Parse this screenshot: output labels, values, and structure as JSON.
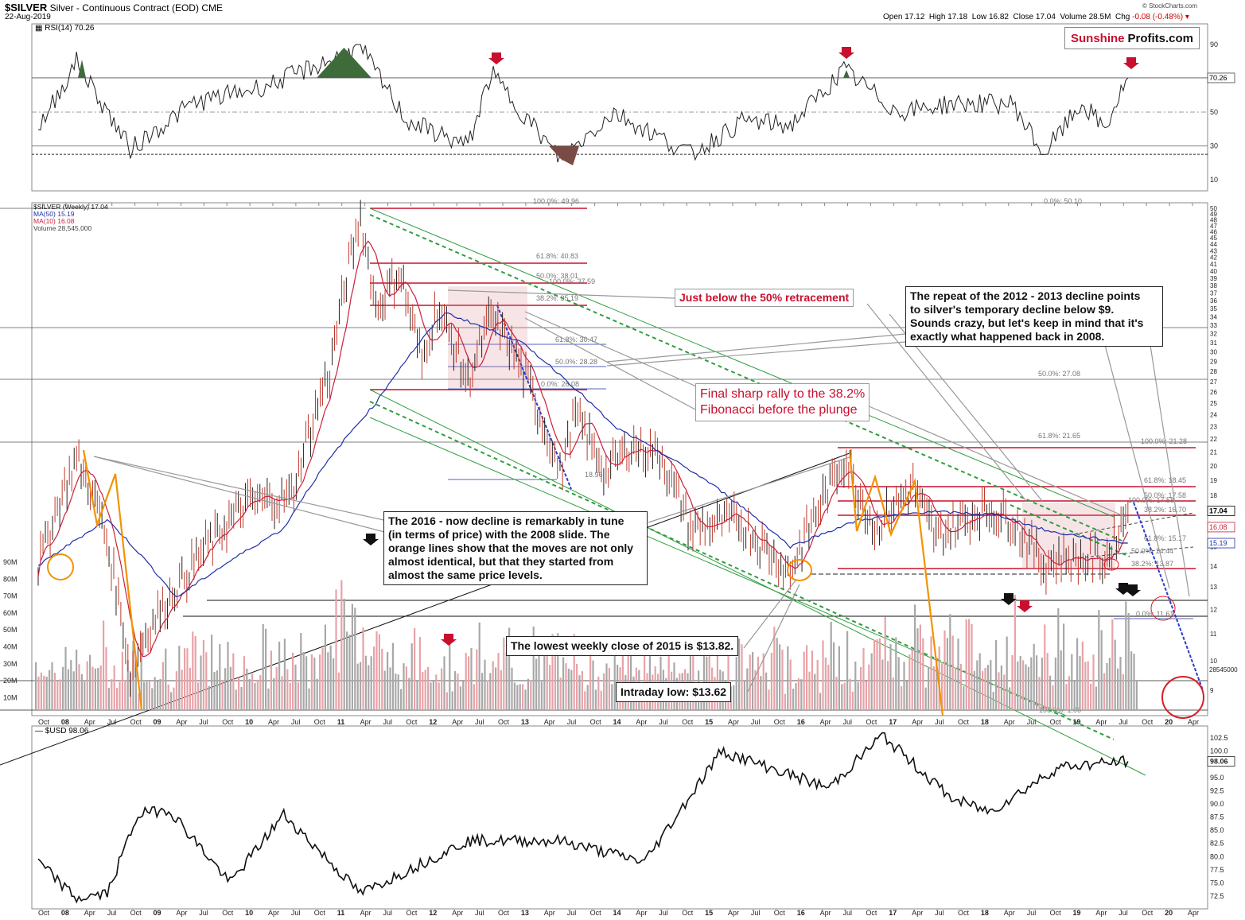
{
  "header": {
    "symbol": "$SILVER",
    "name": "Silver - Continuous Contract (EOD)",
    "exchange": "CME",
    "date": "22-Aug-2019",
    "open_label": "Open",
    "open": "17.12",
    "high_label": "High",
    "high": "17.18",
    "low_label": "Low",
    "low": "16.82",
    "close_label": "Close",
    "close": "17.04",
    "volume_label": "Volume",
    "volume": "28.5M",
    "chg_label": "Chg",
    "chg": "-0.08 (-0.48%)",
    "credit": "© StockCharts.com"
  },
  "brand": {
    "part1": "Sunshine",
    "part2": "Profits.com"
  },
  "colors": {
    "price": "#c0392b",
    "ma50": "#1f2fa8",
    "ma10": "#cc1f3a",
    "fib": "#c8102e",
    "channel": "#2e9e3e",
    "orange": "#f39200",
    "volume_up": "#e7a3a8",
    "volume_down": "#a8a8a8",
    "rsi_over": "#3f6b3a",
    "rsi_under": "#7a4b45"
  },
  "rsi_panel": {
    "label": "RSI(14) 70.26",
    "current": "70.26",
    "ticks": [
      "90",
      "70.26",
      "50",
      "30",
      "10"
    ]
  },
  "price_panel": {
    "legend": [
      "$SILVER (Weekly) 17.04",
      "MA(50) 15.19",
      "MA(10) 16.08",
      "Volume 28,545,000"
    ],
    "y_ticks": [
      "50",
      "49",
      "48",
      "47",
      "46",
      "45",
      "44",
      "43",
      "42",
      "41",
      "40",
      "39",
      "38",
      "37",
      "36",
      "35",
      "34",
      "33",
      "32",
      "31",
      "30",
      "29",
      "28",
      "27",
      "26",
      "25",
      "24",
      "23",
      "22",
      "21",
      "20",
      "19",
      "18",
      "17",
      "16",
      "15",
      "14",
      "13",
      "12",
      "11",
      "10",
      "9"
    ],
    "last_labels": {
      "price": "17.04",
      "ma10": "16.08",
      "ma50": "15.19",
      "volume": "28545000"
    },
    "volume_ticks": [
      "90M",
      "80M",
      "70M",
      "60M",
      "50M",
      "40M",
      "30M",
      "20M",
      "10M"
    ],
    "fib_labels_2011": [
      "100.0%: 49.96",
      "61.8%: 40.83",
      "50.0%: 38.01",
      "38.2%: 35.19",
      "0.0%: 50.10",
      "50.0%: 27.08",
      "61.8%: 21.65"
    ],
    "fib_labels_2012": [
      "100.0%: 37.59",
      "61.8%: 30.47",
      "50.0%: 28.28",
      "0.0%: 26.08",
      "18.96"
    ],
    "fib_labels_2016": [
      "100.0%: 21.28",
      "61.8%: 18.45",
      "50.0%: 17.58",
      "38.2%: 16.70",
      "61.8%: 15.17",
      "50.0%: 14.44",
      "38.2%: 13.87",
      "0.0%: 11.61"
    ],
    "fib_labels_small": [
      "100.0%: 17.58"
    ],
    "bottom_fib": "100.0%: 1.06"
  },
  "annotations": {
    "fifty_pct": "Just below the 50% retracement",
    "repeat": [
      "The repeat of the 2012 - 2013 decline points",
      "to silver's temporary decline below $9.",
      "Sounds crazy, but let's keep in mind that it's",
      "exactly what happened back in 2008."
    ],
    "final_rally": [
      "Final sharp rally to the 38.2%",
      "Fibonacci before the plunge"
    ],
    "tune": [
      "The 2016 - now decline is remarkably in tune",
      "(in terms of price) with the 2008 slide. The",
      "orange lines show that the moves are not only",
      "almost identical, but that they started from",
      "almost the same price levels."
    ],
    "lowest_close": "The lowest weekly close of 2015 is $13.82.",
    "intraday_low": "Intraday low: $13.62"
  },
  "x_axis": [
    "Oct",
    "08",
    "Apr",
    "Jul",
    "Oct",
    "09",
    "Apr",
    "Jul",
    "Oct",
    "10",
    "Apr",
    "Jul",
    "Oct",
    "11",
    "Apr",
    "Jul",
    "Oct",
    "12",
    "Apr",
    "Jul",
    "Oct",
    "13",
    "Apr",
    "Jul",
    "Oct",
    "14",
    "Apr",
    "Jul",
    "Oct",
    "15",
    "Apr",
    "Jul",
    "Oct",
    "16",
    "Apr",
    "Jul",
    "Oct",
    "17",
    "Apr",
    "Jul",
    "Oct",
    "18",
    "Apr",
    "Jul",
    "Oct",
    "19",
    "Apr",
    "Jul",
    "Oct",
    "20",
    "Apr"
  ],
  "usd_panel": {
    "label": "$USD 98.06",
    "current": "98.06",
    "ticks": [
      "102.5",
      "100.0",
      "98.06",
      "95.0",
      "92.5",
      "90.0",
      "87.5",
      "85.0",
      "82.5",
      "80.0",
      "77.5",
      "75.0",
      "72.5"
    ]
  },
  "chart_data": [
    {
      "type": "line",
      "title": "RSI(14)",
      "x": [
        "2007-10",
        "2008-03",
        "2008-10",
        "2009-06",
        "2010-04",
        "2011-04",
        "2011-10",
        "2012-06",
        "2012-09",
        "2013-06",
        "2014-01",
        "2014-11",
        "2015-06",
        "2015-12",
        "2016-07",
        "2017-02",
        "2017-09",
        "2018-05",
        "2018-09",
        "2019-02",
        "2019-05",
        "2019-08"
      ],
      "values": [
        40,
        80,
        28,
        55,
        66,
        88,
        45,
        30,
        73,
        22,
        50,
        25,
        45,
        42,
        75,
        50,
        55,
        55,
        25,
        55,
        40,
        70.26
      ],
      "ylim": [
        0,
        100
      ]
    },
    {
      "type": "line",
      "title": "$SILVER (Weekly) 17.04",
      "series": [
        {
          "name": "$SILVER (Weekly) 17.04",
          "x": [
            "2007-10",
            "2008-03",
            "2008-06",
            "2008-10",
            "2008-12",
            "2009-06",
            "2010-01",
            "2010-07",
            "2010-12",
            "2011-04",
            "2011-06",
            "2011-09",
            "2011-12",
            "2012-02",
            "2012-06",
            "2012-09",
            "2012-12",
            "2013-04",
            "2013-06",
            "2013-08",
            "2013-12",
            "2014-03",
            "2014-07",
            "2014-11",
            "2015-05",
            "2015-12",
            "2016-07",
            "2016-11",
            "2017-04",
            "2017-07",
            "2018-01",
            "2018-05",
            "2018-09",
            "2018-11",
            "2019-05",
            "2019-08"
          ],
          "values": [
            14,
            20.5,
            17,
            9.5,
            11,
            14,
            17.5,
            18,
            28,
            48.5,
            35,
            40,
            29,
            35,
            27,
            34,
            30,
            23,
            19.5,
            24,
            19.5,
            21.5,
            21,
            16,
            16.5,
            13.7,
            20.5,
            16,
            18.5,
            15.5,
            17.2,
            16.5,
            14,
            14.5,
            14.3,
            17.04
          ]
        },
        {
          "name": "MA(50) 15.19",
          "x": [
            "2007-10",
            "2008-07",
            "2009-04",
            "2010-06",
            "2011-06",
            "2012-03",
            "2013-01",
            "2014-01",
            "2015-01",
            "2015-12",
            "2016-09",
            "2017-06",
            "2018-03",
            "2018-10",
            "2019-08"
          ],
          "values": [
            14,
            16.5,
            12.5,
            16,
            25,
            34.5,
            31,
            23,
            19,
            15,
            16.5,
            17,
            16.8,
            15.8,
            15.19
          ]
        }
      ],
      "ylim": [
        9,
        50
      ],
      "log_scale": true
    },
    {
      "type": "line",
      "title": "$USD 98.06",
      "x": [
        "2007-10",
        "2008-03",
        "2008-07",
        "2008-11",
        "2009-03",
        "2009-11",
        "2010-06",
        "2011-04",
        "2012-06",
        "2013-06",
        "2014-05",
        "2015-03",
        "2016-05",
        "2016-12",
        "2017-09",
        "2018-02",
        "2018-11",
        "2019-08"
      ],
      "values": [
        79,
        72,
        73,
        88,
        89,
        75,
        88,
        73,
        83,
        83,
        79,
        100,
        93,
        103,
        91,
        88.5,
        97,
        98.06
      ],
      "ylim": [
        71.5,
        104
      ]
    }
  ]
}
